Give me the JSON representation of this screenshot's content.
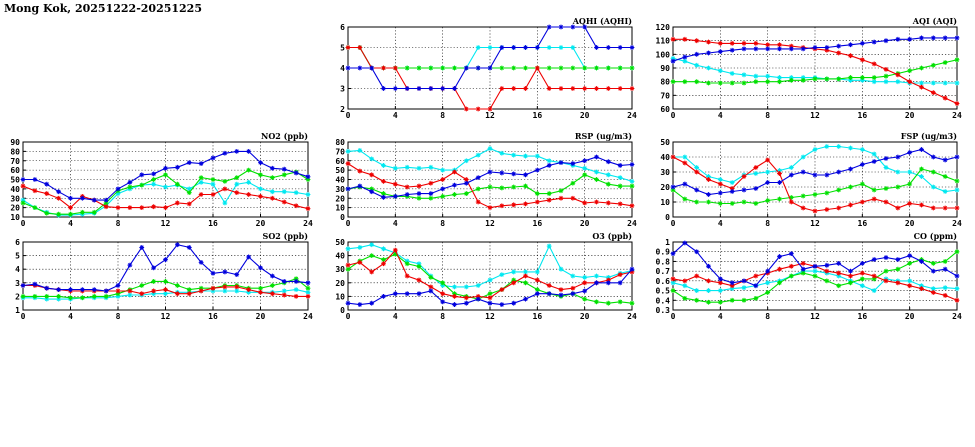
{
  "page": {
    "title": "Mong Kok, 20251222-20251225"
  },
  "series_colors": {
    "s1": "#0000dd",
    "s2": "#00e000",
    "s3": "#ee0000",
    "s4": "#00e8f0"
  },
  "chart_data": [
    {
      "id": "aqhi",
      "type": "line",
      "title": "AQHI (AQHI)",
      "xlim": [
        0,
        24
      ],
      "xticks": [
        0,
        4,
        8,
        12,
        16,
        20,
        24
      ],
      "ylim": [
        2,
        6
      ],
      "yticks": [
        2,
        3,
        4,
        5,
        6
      ],
      "grid": true,
      "series": [
        {
          "color_key": "s4",
          "values": [
            5,
            5,
            4,
            4,
            4,
            4,
            4,
            4,
            4,
            4,
            4,
            5,
            5,
            5,
            5,
            5,
            5,
            5,
            5,
            5,
            4,
            4,
            4,
            4,
            4
          ]
        },
        {
          "color_key": "s2",
          "values": [
            5,
            5,
            4,
            4,
            4,
            4,
            4,
            4,
            4,
            4,
            4,
            4,
            4,
            4,
            4,
            4,
            4,
            4,
            4,
            4,
            4,
            4,
            4,
            4,
            4
          ]
        },
        {
          "color_key": "s3",
          "values": [
            5,
            5,
            4,
            4,
            4,
            3,
            3,
            3,
            3,
            3,
            2,
            2,
            2,
            3,
            3,
            3,
            4,
            3,
            3,
            3,
            3,
            3,
            3,
            3,
            3
          ]
        },
        {
          "color_key": "s1",
          "values": [
            4,
            4,
            4,
            3,
            3,
            3,
            3,
            3,
            3,
            3,
            4,
            4,
            4,
            5,
            5,
            5,
            5,
            6,
            6,
            6,
            6,
            5,
            5,
            5,
            5
          ]
        }
      ]
    },
    {
      "id": "aqi",
      "type": "line",
      "title": "AQI (AQI)",
      "xlim": [
        0,
        24
      ],
      "xticks": [
        0,
        4,
        8,
        12,
        16,
        20,
        24
      ],
      "ylim": [
        60,
        120
      ],
      "yticks": [
        60,
        70,
        80,
        90,
        100,
        110,
        120
      ],
      "grid": true,
      "series": [
        {
          "color_key": "s4",
          "values": [
            97,
            95,
            92,
            90,
            88,
            86,
            85,
            84,
            84,
            83,
            83,
            83,
            83,
            82,
            82,
            81,
            81,
            80,
            80,
            80,
            79,
            79,
            79,
            79,
            79
          ]
        },
        {
          "color_key": "s2",
          "values": [
            80,
            80,
            80,
            79,
            79,
            79,
            79,
            80,
            80,
            80,
            81,
            81,
            82,
            82,
            82,
            83,
            83,
            83,
            84,
            86,
            88,
            90,
            92,
            94,
            96
          ]
        },
        {
          "color_key": "s3",
          "values": [
            111,
            111,
            110,
            109,
            108,
            108,
            108,
            108,
            107,
            107,
            106,
            105,
            104,
            103,
            101,
            99,
            96,
            93,
            89,
            85,
            80,
            76,
            72,
            68,
            64
          ]
        },
        {
          "color_key": "s1",
          "values": [
            95,
            98,
            100,
            101,
            102,
            103,
            104,
            104,
            104,
            104,
            104,
            104,
            105,
            105,
            106,
            107,
            108,
            109,
            110,
            111,
            111,
            112,
            112,
            112,
            112
          ]
        }
      ]
    },
    {
      "id": "no2",
      "type": "line",
      "title": "NO2 (ppb)",
      "xlim": [
        0,
        24
      ],
      "xticks": [
        0,
        4,
        8,
        12,
        16,
        20,
        24
      ],
      "ylim": [
        10,
        90
      ],
      "yticks": [
        10,
        20,
        30,
        40,
        50,
        60,
        70,
        80,
        90
      ],
      "grid": true,
      "series": [
        {
          "color_key": "s4",
          "values": [
            28,
            20,
            15,
            12,
            12,
            13,
            14,
            22,
            35,
            40,
            44,
            45,
            42,
            44,
            40,
            47,
            45,
            25,
            45,
            47,
            40,
            37,
            37,
            36,
            34
          ]
        },
        {
          "color_key": "s2",
          "values": [
            25,
            20,
            14,
            13,
            13,
            15,
            15,
            25,
            38,
            42,
            44,
            50,
            55,
            45,
            36,
            52,
            50,
            48,
            52,
            60,
            55,
            52,
            55,
            58,
            50
          ]
        },
        {
          "color_key": "s3",
          "values": [
            43,
            38,
            35,
            30,
            20,
            32,
            28,
            21,
            20,
            20,
            20,
            21,
            20,
            25,
            24,
            34,
            34,
            40,
            36,
            34,
            32,
            30,
            26,
            22,
            19
          ]
        },
        {
          "color_key": "s1",
          "values": [
            50,
            50,
            45,
            37,
            30,
            30,
            28,
            28,
            40,
            47,
            55,
            56,
            62,
            63,
            68,
            67,
            73,
            78,
            80,
            80,
            68,
            62,
            61,
            57,
            53
          ]
        }
      ]
    },
    {
      "id": "rsp",
      "type": "line",
      "title": "RSP (ug/m3)",
      "xlim": [
        0,
        24
      ],
      "xticks": [
        0,
        4,
        8,
        12,
        16,
        20,
        24
      ],
      "ylim": [
        0,
        80
      ],
      "yticks": [
        0,
        10,
        20,
        30,
        40,
        50,
        60,
        70,
        80
      ],
      "grid": true,
      "series": [
        {
          "color_key": "s4",
          "values": [
            70,
            71,
            62,
            55,
            52,
            53,
            52,
            53,
            50,
            50,
            60,
            66,
            73,
            68,
            66,
            65,
            65,
            60,
            58,
            55,
            52,
            48,
            45,
            42,
            38
          ]
        },
        {
          "color_key": "s2",
          "values": [
            30,
            32,
            30,
            25,
            22,
            22,
            20,
            20,
            22,
            24,
            25,
            30,
            32,
            31,
            32,
            33,
            25,
            25,
            28,
            36,
            45,
            40,
            35,
            33,
            33
          ]
        },
        {
          "color_key": "s3",
          "values": [
            57,
            49,
            45,
            38,
            35,
            32,
            33,
            36,
            40,
            48,
            40,
            16,
            10,
            12,
            13,
            14,
            16,
            18,
            20,
            20,
            15,
            16,
            15,
            14,
            12
          ]
        },
        {
          "color_key": "s1",
          "values": [
            30,
            33,
            27,
            21,
            22,
            24,
            25,
            25,
            30,
            34,
            36,
            42,
            48,
            47,
            46,
            45,
            50,
            55,
            58,
            57,
            60,
            64,
            59,
            55,
            56
          ]
        }
      ]
    },
    {
      "id": "fsp",
      "type": "line",
      "title": "FSP (ug/m3)",
      "xlim": [
        0,
        24
      ],
      "xticks": [
        0,
        4,
        8,
        12,
        16,
        20,
        24
      ],
      "ylim": [
        0,
        50
      ],
      "yticks": [
        0,
        10,
        20,
        30,
        40,
        50
      ],
      "grid": true,
      "series": [
        {
          "color_key": "s4",
          "values": [
            40,
            40,
            33,
            27,
            25,
            23,
            28,
            29,
            30,
            31,
            33,
            40,
            45,
            47,
            47,
            46,
            45,
            42,
            33,
            30,
            30,
            27,
            20,
            17,
            18
          ]
        },
        {
          "color_key": "s2",
          "values": [
            18,
            12,
            10,
            10,
            9,
            9,
            10,
            9,
            11,
            12,
            13,
            14,
            15,
            16,
            18,
            20,
            22,
            18,
            19,
            20,
            22,
            32,
            30,
            27,
            24
          ]
        },
        {
          "color_key": "s3",
          "values": [
            40,
            36,
            30,
            25,
            22,
            19,
            27,
            33,
            38,
            29,
            10,
            6,
            4,
            5,
            6,
            8,
            10,
            12,
            10,
            6,
            9,
            8,
            6,
            6,
            6
          ]
        },
        {
          "color_key": "s1",
          "values": [
            20,
            22,
            18,
            15,
            16,
            17,
            18,
            19,
            23,
            23,
            28,
            30,
            28,
            28,
            30,
            32,
            35,
            37,
            39,
            40,
            43,
            45,
            40,
            38,
            40
          ]
        }
      ]
    },
    {
      "id": "so2",
      "type": "line",
      "title": "SO2 (ppb)",
      "xlim": [
        0,
        24
      ],
      "xticks": [
        0,
        4,
        8,
        12,
        16,
        20,
        24
      ],
      "ylim": [
        1,
        6
      ],
      "yticks": [
        1,
        2,
        3,
        4,
        5,
        6
      ],
      "grid": true,
      "series": [
        {
          "color_key": "s4",
          "values": [
            1.9,
            1.9,
            1.8,
            1.8,
            1.8,
            1.9,
            1.9,
            1.9,
            2.0,
            2.1,
            2.1,
            2.2,
            2.2,
            2.3,
            2.3,
            2.4,
            2.4,
            2.4,
            2.4,
            2.3,
            2.3,
            2.3,
            2.4,
            2.5,
            2.3
          ]
        },
        {
          "color_key": "s2",
          "values": [
            2.0,
            2.0,
            2.0,
            2.0,
            1.9,
            1.9,
            2.0,
            2.0,
            2.2,
            2.5,
            2.8,
            3.1,
            3.1,
            2.8,
            2.5,
            2.6,
            2.6,
            2.8,
            2.8,
            2.6,
            2.6,
            2.8,
            3.0,
            3.3,
            2.6
          ]
        },
        {
          "color_key": "s3",
          "values": [
            2.8,
            2.8,
            2.6,
            2.5,
            2.4,
            2.4,
            2.4,
            2.4,
            2.4,
            2.4,
            2.2,
            2.4,
            2.5,
            2.2,
            2.2,
            2.4,
            2.6,
            2.7,
            2.7,
            2.5,
            2.3,
            2.2,
            2.1,
            2.0,
            2.0
          ]
        },
        {
          "color_key": "s1",
          "values": [
            2.8,
            2.9,
            2.6,
            2.5,
            2.5,
            2.5,
            2.5,
            2.4,
            2.8,
            4.3,
            5.6,
            4.1,
            4.7,
            5.8,
            5.6,
            4.5,
            3.7,
            3.8,
            3.6,
            4.9,
            4.1,
            3.5,
            3.1,
            3.1,
            3.0
          ]
        }
      ]
    },
    {
      "id": "o3",
      "type": "line",
      "title": "O3 (ppb)",
      "xlim": [
        0,
        24
      ],
      "xticks": [
        0,
        4,
        8,
        12,
        16,
        20,
        24
      ],
      "ylim": [
        0,
        50
      ],
      "yticks": [
        0,
        10,
        20,
        30,
        40,
        50
      ],
      "grid": true,
      "series": [
        {
          "color_key": "s4",
          "values": [
            45,
            46,
            48,
            45,
            42,
            36,
            34,
            25,
            18,
            17,
            17,
            18,
            22,
            26,
            28,
            28,
            28,
            47,
            30,
            25,
            24,
            25,
            24,
            27,
            29
          ]
        },
        {
          "color_key": "s2",
          "values": [
            30,
            36,
            40,
            37,
            41,
            34,
            32,
            24,
            20,
            12,
            10,
            8,
            12,
            15,
            22,
            20,
            15,
            12,
            10,
            12,
            8,
            6,
            5,
            6,
            5
          ]
        },
        {
          "color_key": "s3",
          "values": [
            33,
            35,
            28,
            34,
            44,
            25,
            22,
            17,
            12,
            10,
            9,
            10,
            9,
            15,
            20,
            25,
            22,
            18,
            15,
            16,
            20,
            20,
            22,
            26,
            28
          ]
        },
        {
          "color_key": "s1",
          "values": [
            5,
            4,
            5,
            10,
            12,
            12,
            12,
            14,
            6,
            4,
            5,
            8,
            5,
            4,
            5,
            8,
            12,
            12,
            11,
            12,
            14,
            20,
            20,
            20,
            30
          ]
        }
      ]
    },
    {
      "id": "co",
      "type": "line",
      "title": "CO (ppm)",
      "xlim": [
        0,
        24
      ],
      "xticks": [
        0,
        4,
        8,
        12,
        16,
        20,
        24
      ],
      "ylim": [
        0.3,
        1.0
      ],
      "yticks": [
        0.3,
        0.4,
        0.5,
        0.6,
        0.7,
        0.8,
        0.9,
        1.0
      ],
      "grid": true,
      "series": [
        {
          "color_key": "s4",
          "values": [
            0.58,
            0.55,
            0.5,
            0.5,
            0.5,
            0.52,
            0.53,
            0.55,
            0.58,
            0.6,
            0.65,
            0.7,
            0.7,
            0.68,
            0.65,
            0.6,
            0.55,
            0.5,
            0.62,
            0.6,
            0.6,
            0.55,
            0.52,
            0.53,
            0.52
          ]
        },
        {
          "color_key": "s2",
          "values": [
            0.5,
            0.42,
            0.4,
            0.38,
            0.38,
            0.4,
            0.4,
            0.42,
            0.48,
            0.58,
            0.65,
            0.68,
            0.65,
            0.6,
            0.55,
            0.58,
            0.62,
            0.62,
            0.7,
            0.72,
            0.78,
            0.82,
            0.78,
            0.8,
            0.9
          ]
        },
        {
          "color_key": "s3",
          "values": [
            0.62,
            0.6,
            0.65,
            0.6,
            0.58,
            0.55,
            0.6,
            0.65,
            0.68,
            0.72,
            0.75,
            0.78,
            0.75,
            0.7,
            0.68,
            0.65,
            0.68,
            0.65,
            0.6,
            0.58,
            0.55,
            0.52,
            0.48,
            0.45,
            0.4
          ]
        },
        {
          "color_key": "s1",
          "values": [
            0.88,
            0.99,
            0.9,
            0.75,
            0.62,
            0.58,
            0.6,
            0.55,
            0.7,
            0.85,
            0.88,
            0.72,
            0.75,
            0.76,
            0.78,
            0.7,
            0.78,
            0.82,
            0.84,
            0.82,
            0.86,
            0.8,
            0.7,
            0.72,
            0.65
          ]
        }
      ]
    }
  ]
}
